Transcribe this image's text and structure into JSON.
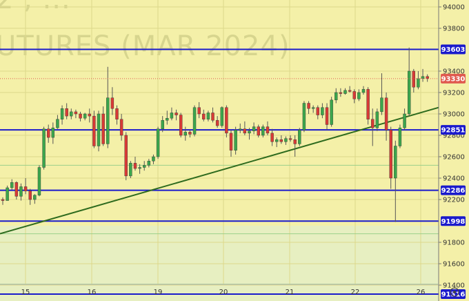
{
  "chart_data": {
    "type": "candlestick",
    "watermark_top": "2 , ...",
    "watermark": "UTURES (MAR 2024)",
    "y_axis": {
      "min": 91200,
      "max": 94100,
      "ticks": [
        94000,
        93800,
        93400,
        93200,
        93000,
        92800,
        92600,
        92400,
        92200,
        91800,
        91600,
        91400
      ]
    },
    "x_ticks": [
      "15",
      "16",
      "19",
      "20",
      "21",
      "22",
      "26"
    ],
    "price_levels": [
      {
        "value": 93603,
        "label": "93603",
        "color": "#1a1acc"
      },
      {
        "value": 92851,
        "label": "92851",
        "color": "#1a1acc"
      },
      {
        "value": 92286,
        "label": "92286",
        "color": "#1a1acc"
      },
      {
        "value": 91998,
        "label": "91998",
        "color": "#1a1acc"
      },
      {
        "value": 91316,
        "label": "91316",
        "color": "#1a1acc"
      }
    ],
    "current_price": {
      "value": 93330,
      "label": "93330",
      "color": "#e05a4f"
    },
    "thin_levels": [
      91880,
      92520,
      91410
    ],
    "trendline": {
      "from": {
        "bar": 0,
        "price": 91880
      },
      "to": {
        "bar": 89,
        "price": 93060
      },
      "color": "#2e6b1e"
    },
    "colors": {
      "up": "#3ba64c",
      "down": "#d83a36",
      "wick": "#555555",
      "background": "#f4f0a8"
    },
    "candles": [
      [
        92200,
        92220,
        92150,
        92190
      ],
      [
        92190,
        92330,
        92190,
        92310
      ],
      [
        92310,
        92390,
        92290,
        92360
      ],
      [
        92360,
        92370,
        92200,
        92230
      ],
      [
        92230,
        92350,
        92190,
        92320
      ],
      [
        92320,
        92400,
        92250,
        92280
      ],
      [
        92280,
        92300,
        92150,
        92200
      ],
      [
        92200,
        92250,
        92160,
        92240
      ],
      [
        92240,
        92520,
        92230,
        92500
      ],
      [
        92500,
        92880,
        92480,
        92860
      ],
      [
        92860,
        92900,
        92730,
        92780
      ],
      [
        92780,
        92920,
        92720,
        92870
      ],
      [
        92870,
        92990,
        92860,
        92950
      ],
      [
        92950,
        93080,
        92900,
        93050
      ],
      [
        93050,
        93100,
        92950,
        92980
      ],
      [
        92980,
        93050,
        92950,
        93020
      ],
      [
        93020,
        93040,
        92960,
        93000
      ],
      [
        93000,
        93020,
        92930,
        92960
      ],
      [
        92960,
        93010,
        92940,
        93000
      ],
      [
        93000,
        93050,
        92920,
        92980
      ],
      [
        92980,
        93030,
        92680,
        92700
      ],
      [
        92700,
        93030,
        92650,
        93000
      ],
      [
        93000,
        93070,
        92700,
        92720
      ],
      [
        92720,
        93440,
        92680,
        93150
      ],
      [
        93150,
        93250,
        92990,
        93050
      ],
      [
        93050,
        93080,
        92900,
        92950
      ],
      [
        92950,
        93000,
        92750,
        92800
      ],
      [
        92800,
        92830,
        92380,
        92420
      ],
      [
        92420,
        92560,
        92400,
        92540
      ],
      [
        92540,
        92600,
        92470,
        92490
      ],
      [
        92490,
        92530,
        92440,
        92500
      ],
      [
        92500,
        92560,
        92470,
        92520
      ],
      [
        92520,
        92580,
        92500,
        92560
      ],
      [
        92560,
        92620,
        92530,
        92600
      ],
      [
        92600,
        92880,
        92580,
        92860
      ],
      [
        92860,
        92980,
        92830,
        92940
      ],
      [
        92940,
        93030,
        92900,
        92960
      ],
      [
        92960,
        93060,
        92940,
        93010
      ],
      [
        93010,
        93040,
        92940,
        92990
      ],
      [
        92990,
        93010,
        92780,
        92800
      ],
      [
        92800,
        92880,
        92750,
        92830
      ],
      [
        92830,
        92850,
        92780,
        92810
      ],
      [
        92810,
        93080,
        92790,
        93060
      ],
      [
        93060,
        93110,
        92960,
        93000
      ],
      [
        93000,
        93040,
        92930,
        92950
      ],
      [
        92950,
        93030,
        92930,
        93010
      ],
      [
        93010,
        93060,
        92920,
        92940
      ],
      [
        92940,
        92980,
        92870,
        92890
      ],
      [
        92890,
        93070,
        92870,
        93060
      ],
      [
        93060,
        93080,
        92780,
        92820
      ],
      [
        92820,
        92850,
        92600,
        92660
      ],
      [
        92660,
        92880,
        92620,
        92850
      ],
      [
        92850,
        92910,
        92820,
        92860
      ],
      [
        92860,
        92930,
        92800,
        92820
      ],
      [
        92820,
        92870,
        92760,
        92840
      ],
      [
        92840,
        92920,
        92810,
        92880
      ],
      [
        92880,
        92900,
        92780,
        92800
      ],
      [
        92800,
        92900,
        92780,
        92880
      ],
      [
        92880,
        92930,
        92800,
        92820
      ],
      [
        92820,
        92860,
        92700,
        92740
      ],
      [
        92740,
        92780,
        92690,
        92760
      ],
      [
        92760,
        92800,
        92720,
        92740
      ],
      [
        92740,
        92790,
        92710,
        92770
      ],
      [
        92770,
        92800,
        92740,
        92760
      ],
      [
        92760,
        92800,
        92600,
        92720
      ],
      [
        92720,
        92870,
        92700,
        92850
      ],
      [
        92850,
        93120,
        92830,
        93100
      ],
      [
        93100,
        93120,
        93000,
        93050
      ],
      [
        93050,
        93080,
        93010,
        93060
      ],
      [
        93060,
        93080,
        92950,
        92990
      ],
      [
        92990,
        93100,
        92960,
        93060
      ],
      [
        93060,
        93100,
        92850,
        92900
      ],
      [
        92900,
        93160,
        92880,
        93130
      ],
      [
        93130,
        93240,
        93100,
        93200
      ],
      [
        93200,
        93240,
        93160,
        93190
      ],
      [
        93190,
        93240,
        93180,
        93220
      ],
      [
        93220,
        93260,
        93200,
        93210
      ],
      [
        93210,
        93230,
        93100,
        93140
      ],
      [
        93140,
        93230,
        93120,
        93200
      ],
      [
        93200,
        93260,
        93180,
        93230
      ],
      [
        93230,
        93250,
        92900,
        92950
      ],
      [
        92950,
        93050,
        92700,
        92870
      ],
      [
        92870,
        93050,
        92840,
        93020
      ],
      [
        93020,
        93380,
        92990,
        93150
      ],
      [
        93150,
        93200,
        92750,
        92850
      ],
      [
        92850,
        92880,
        92300,
        92400
      ],
      [
        92400,
        92750,
        91990,
        92700
      ],
      [
        92700,
        92900,
        92680,
        92870
      ],
      [
        92870,
        93050,
        92850,
        93000
      ],
      [
        93000,
        93620,
        92980,
        93400
      ],
      [
        93400,
        93420,
        93200,
        93250
      ],
      [
        93250,
        93400,
        93230,
        93330
      ],
      [
        93330,
        93420,
        93300,
        93350
      ],
      [
        93350,
        93370,
        93300,
        93330
      ]
    ]
  }
}
